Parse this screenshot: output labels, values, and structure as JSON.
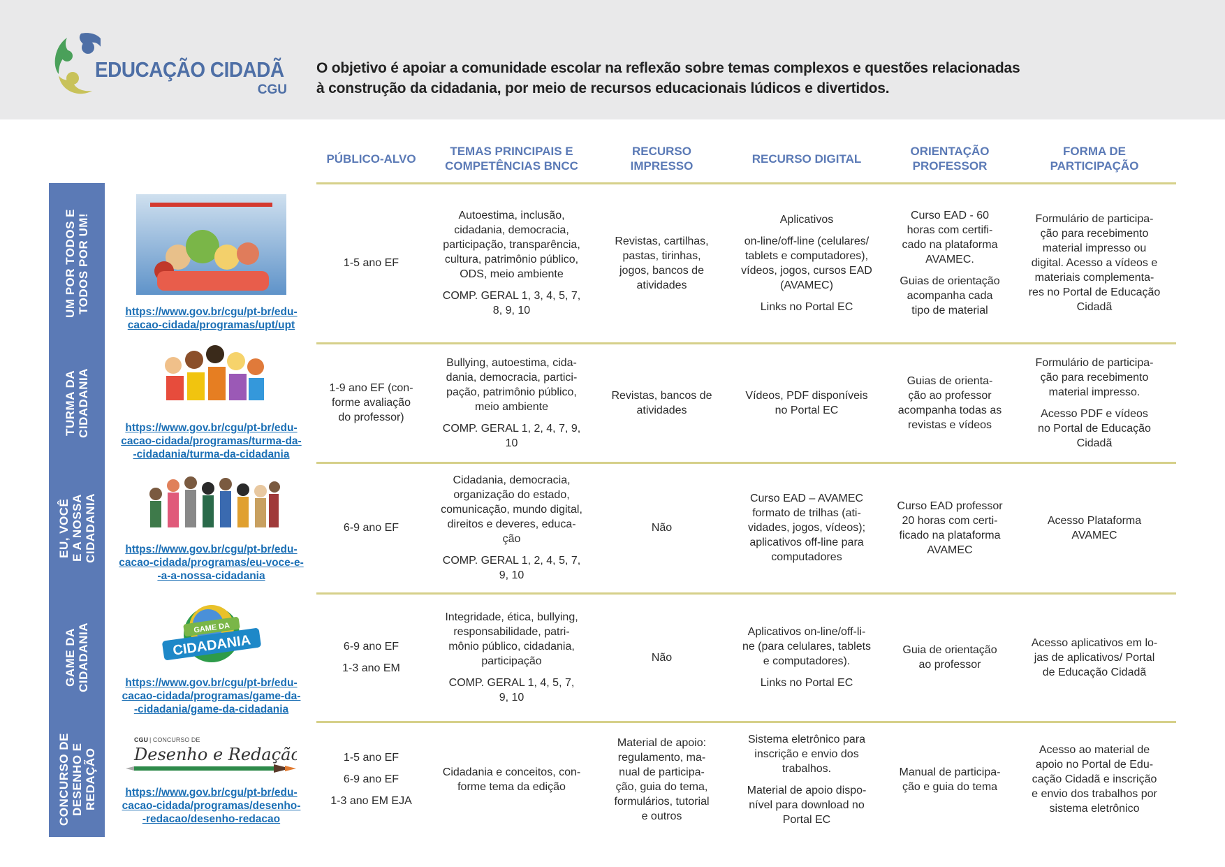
{
  "header": {
    "logo_title": "EDUCAÇÃO CIDADÃ",
    "logo_sub": "CGU",
    "intro": "O objetivo é apoiar a comunidade escolar na reflexão sobre temas complexos e questões relacionadas\nà construção da cidadania, por meio de recursos educacionais lúdicos e divertidos."
  },
  "colors": {
    "accent": "#5b7ab6",
    "rule": "#d6d08a",
    "link": "#1b6fb5",
    "header_bg": "#e9e9ea"
  },
  "columns": [
    "PÚBLICO-ALVO",
    "TEMAS PRINCIPAIS E\nCOMPETÊNCIAS BNCC",
    "RECURSO\nIMPRESSO",
    "RECURSO DIGITAL",
    "ORIENTAÇÃO\nPROFESSOR",
    "FORMA DE\nPARTICIPAÇÃO"
  ],
  "rows": [
    {
      "program": "UM POR TODOS E\nTODOS POR UM!",
      "image": "um-por-todos-cover",
      "link": "https://www.gov.br/cgu/pt-br/edu-\ncacao-cidada/programas/upt/upt",
      "publico": [
        "1-5 ano EF"
      ],
      "temas": [
        "Autoestima, inclusão,\ncidadania, democracia,\nparticipação, transparência,\ncultura, patrimônio público,\nODS, meio ambiente",
        "COMP. GERAL 1, 3, 4, 5, 7,\n8, 9, 10"
      ],
      "impresso": [
        "Revistas, cartilhas,\npastas, tirinhas,\njogos, bancos de\natividades"
      ],
      "digital": [
        "Aplicativos",
        "on-line/off-line (celulares/\ntablets e computadores),\nvídeos, jogos, cursos EAD\n(AVAMEC)",
        "Links no Portal EC"
      ],
      "orientacao": [
        "Curso EAD - 60\nhoras com certifi-\ncado na plataforma\nAVAMEC.",
        "Guias de orientação\nacompanha cada\ntipo de material"
      ],
      "forma": [
        "Formulário de participa-\nção para recebimento\nmaterial impresso ou\ndigital. Acesso a vídeos e\nmateriais complementa-\nres no Portal de Educação\nCidadã"
      ]
    },
    {
      "program": "TURMA DA\nCIDADANIA",
      "image": "turma-da-cidadania-characters",
      "link": "https://www.gov.br/cgu/pt-br/edu-\ncacao-cidada/programas/turma-da-\n-cidadania/turma-da-cidadania",
      "publico": [
        "1-9 ano EF (con-\nforme avaliação\ndo professor)"
      ],
      "temas": [
        "Bullying, autoestima, cida-\ndania, democracia, partici-\npação, patrimônio público,\nmeio ambiente",
        "COMP. GERAL 1, 2, 4, 7, 9,\n10"
      ],
      "impresso": [
        "Revistas, bancos de\natividades"
      ],
      "digital": [
        "Vídeos, PDF disponíveis\nno Portal EC"
      ],
      "orientacao": [
        "Guias de orienta-\nção ao professor\nacompanha todas as\nrevistas e vídeos"
      ],
      "forma": [
        "Formulário de participa-\nção para recebimento\nmaterial impresso.",
        "Acesso PDF e vídeos\nno Portal de Educação\nCidadã"
      ]
    },
    {
      "program": "EU, VOCÊ\nE A NOSSA\nCIDADANIA",
      "image": "eu-voce-characters",
      "link": "https://www.gov.br/cgu/pt-br/edu-\ncacao-cidada/programas/eu-voce-e-\n-a-a-nossa-cidadania",
      "publico": [
        "6-9 ano EF"
      ],
      "temas": [
        "Cidadania, democracia,\norganização do estado,\ncomunicação, mundo digital,\ndireitos e deveres, educa-\nção",
        "COMP. GERAL 1, 2, 4, 5, 7,\n9, 10"
      ],
      "impresso": [
        "Não"
      ],
      "digital": [
        "Curso EAD – AVAMEC\nformato de trilhas (ati-\nvidades, jogos, vídeos);\naplicativos off-line para\ncomputadores"
      ],
      "orientacao": [
        "Curso EAD professor\n20 horas com certi-\nficado na plataforma\nAVAMEC"
      ],
      "forma": [
        "Acesso Plataforma\nAVAMEC"
      ]
    },
    {
      "program": "GAME DA\nCIDADANIA",
      "image": "game-da-cidadania-logo",
      "image_text": "GAME DA CIDADANIA",
      "link": "https://www.gov.br/cgu/pt-br/edu-\ncacao-cidada/programas/game-da-\n-cidadania/game-da-cidadania",
      "publico": [
        "6-9 ano EF",
        "1-3 ano EM"
      ],
      "temas": [
        "Integridade, ética, bullying,\nresponsabilidade, patri-\nmônio público, cidadania,\nparticipação",
        "COMP. GERAL 1, 4, 5, 7,\n9, 10"
      ],
      "impresso": [
        "Não"
      ],
      "digital": [
        "Aplicativos on-line/off-li-\nne (para celulares, tablets\ne computadores).",
        "Links no Portal EC"
      ],
      "orientacao": [
        "Guia de orientação\nao professor"
      ],
      "forma": [
        "Acesso aplicativos em lo-\njas de aplicativos/ Portal\nde Educação Cidadã"
      ]
    },
    {
      "program": "CONCURSO DE\nDESENHO E\nREDAÇÃO",
      "image": "concurso-desenho-redacao-logo",
      "image_text": "CGU | CONCURSO DE Desenho e Redação",
      "link": "https://www.gov.br/cgu/pt-br/edu-\ncacao-cidada/programas/desenho-\n-redacao/desenho-redacao",
      "publico": [
        "1-5 ano EF",
        "6-9 ano EF",
        "1-3 ano EM EJA"
      ],
      "temas": [
        "Cidadania e conceitos, con-\nforme tema da edição"
      ],
      "impresso": [
        "Material de apoio:\nregulamento, ma-\nnual de participa-\nção, guia do tema,\nformulários, tutorial\ne outros"
      ],
      "digital": [
        "Sistema eletrônico para\ninscrição e envio dos\ntrabalhos.",
        "Material de apoio dispo-\nnível para download no\nPortal EC"
      ],
      "orientacao": [
        "Manual de participa-\nção e guia do tema"
      ],
      "forma": [
        "Acesso ao material de\napoio no Portal de Edu-\ncação Cidadã e inscrição\ne envio dos trabalhos por\nsistema eletrônico"
      ]
    }
  ]
}
